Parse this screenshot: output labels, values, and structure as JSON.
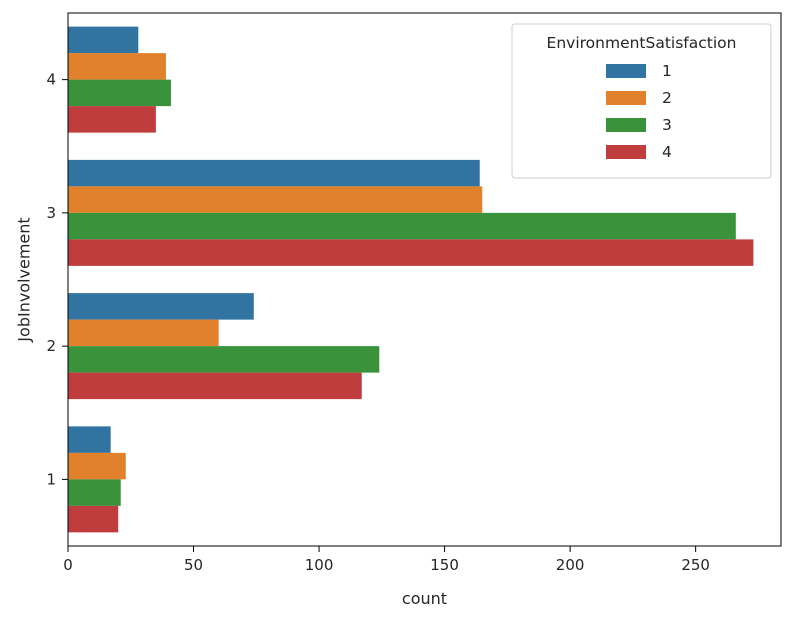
{
  "chart_data": {
    "type": "bar",
    "orientation": "horizontal",
    "title": "",
    "xlabel": "count",
    "ylabel": "JobInvolvement",
    "categories": [
      "4",
      "3",
      "2",
      "1"
    ],
    "xlim": [
      0,
      284
    ],
    "x_ticks": [
      0,
      50,
      100,
      150,
      200,
      250
    ],
    "grid": false,
    "legend": {
      "title": "EnvironmentSatisfaction",
      "placement": "top-right"
    },
    "series": [
      {
        "name": "1",
        "color": "#3274a1",
        "values": [
          28,
          164,
          74,
          17
        ]
      },
      {
        "name": "2",
        "color": "#e1812c",
        "values": [
          39,
          165,
          60,
          23
        ]
      },
      {
        "name": "3",
        "color": "#3a923a",
        "values": [
          41,
          266,
          124,
          21
        ]
      },
      {
        "name": "4",
        "color": "#c03d3e",
        "values": [
          35,
          273,
          117,
          20
        ]
      }
    ]
  }
}
